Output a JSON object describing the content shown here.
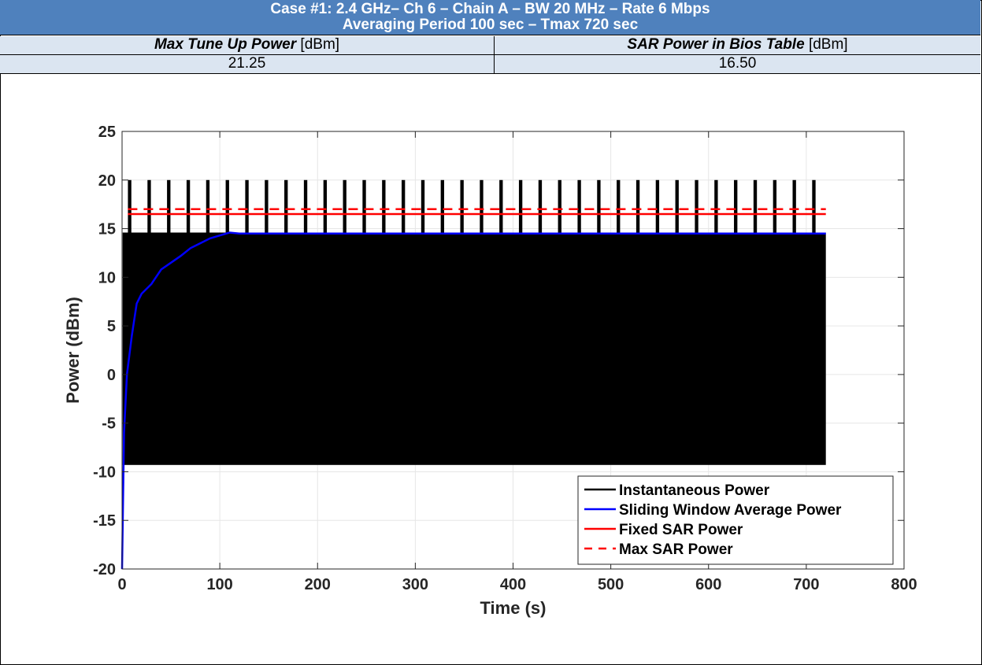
{
  "header": {
    "line1": "Case #1: 2.4 GHz– Ch 6 – Chain A – BW 20 MHz – Rate 6 Mbps",
    "line2": "Averaging Period 100 sec – Tmax 720 sec"
  },
  "table": {
    "col1_label_bold": "Max Tune Up Power",
    "col1_unit": "[dBm]",
    "col2_label_bold": "SAR Power in Bios Table",
    "col2_unit": "[dBm]",
    "col1_value": "21.25",
    "col2_value": "16.50"
  },
  "chart_data": {
    "type": "line",
    "xlabel": "Time (s)",
    "ylabel": "Power (dBm)",
    "xlim": [
      0,
      800
    ],
    "ylim": [
      -20,
      25
    ],
    "xticks": [
      "0",
      "100",
      "200",
      "300",
      "400",
      "500",
      "600",
      "700",
      "800"
    ],
    "yticks": [
      "-20",
      "-15",
      "-10",
      "-5",
      "0",
      "5",
      "10",
      "15",
      "20",
      "25"
    ],
    "grid": true,
    "legend_position": "bottom-right",
    "series": [
      {
        "name": "Instantaneous Power",
        "color": "#000000",
        "style": "solid",
        "description_values": {
          "low": -9.3,
          "base_high": 14.6,
          "spike_peak": 20.0,
          "spike_start": 6,
          "spike_period": 20,
          "x_end": 720
        }
      },
      {
        "name": "Sliding Window Average Power",
        "color": "#0000ff",
        "style": "solid",
        "x": [
          0,
          2,
          5,
          10,
          15,
          20,
          30,
          40,
          50,
          60,
          70,
          80,
          90,
          100,
          110,
          120,
          720
        ],
        "y": [
          -20,
          -6,
          0,
          4,
          7.3,
          8.3,
          9.3,
          10.8,
          11.5,
          12.2,
          13.0,
          13.5,
          14.0,
          14.3,
          14.6,
          14.5,
          14.5
        ]
      },
      {
        "name": "Fixed SAR Power",
        "color": "#ff0000",
        "style": "solid",
        "x": [
          6,
          720
        ],
        "y": [
          16.5,
          16.5
        ]
      },
      {
        "name": "Max SAR Power",
        "color": "#ff0000",
        "style": "dashed",
        "x": [
          6,
          720
        ],
        "y": [
          17.0,
          17.0
        ]
      }
    ]
  }
}
